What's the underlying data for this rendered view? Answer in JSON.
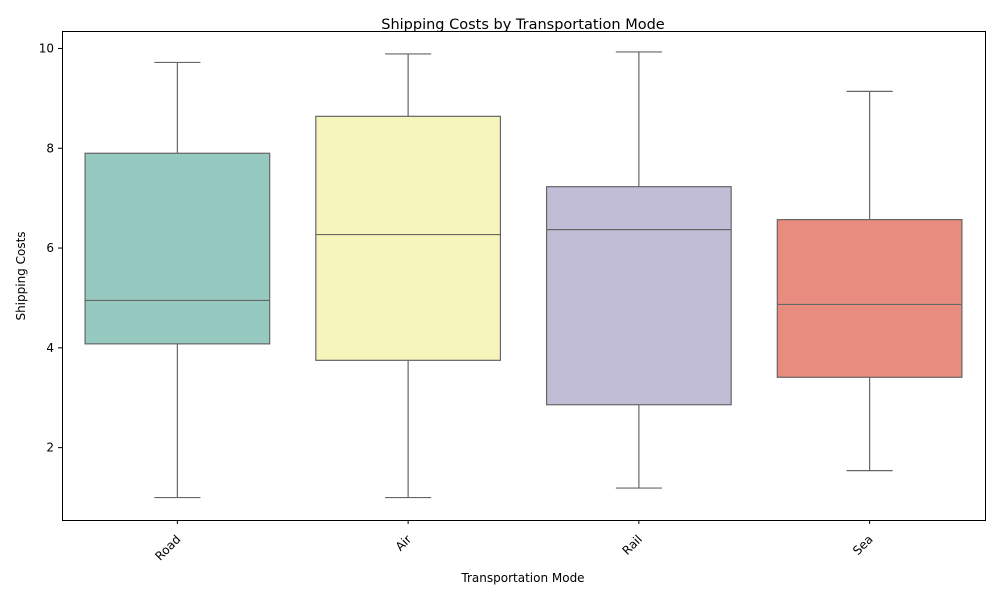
{
  "chart_data": {
    "type": "box",
    "title": "Shipping Costs by Transportation Mode",
    "xlabel": "Transportation Mode",
    "ylabel": "Shipping Costs",
    "ylim": [
      0.55,
      10.35
    ],
    "yticks": [
      2,
      4,
      6,
      8,
      10
    ],
    "grid": false,
    "categories": [
      "Road",
      "Air",
      "Rail",
      "Sea"
    ],
    "boxes": [
      {
        "category": "Road",
        "min": 1.0,
        "q1": 4.08,
        "median": 4.95,
        "q3": 7.9,
        "max": 9.72,
        "color": "#96c9c0"
      },
      {
        "category": "Air",
        "min": 1.0,
        "q1": 3.75,
        "median": 6.27,
        "q3": 8.64,
        "max": 9.89,
        "color": "#f6f6bc"
      },
      {
        "category": "Rail",
        "min": 1.19,
        "q1": 2.86,
        "median": 6.37,
        "q3": 7.23,
        "max": 9.93,
        "color": "#c1bdd6"
      },
      {
        "category": "Sea",
        "min": 1.54,
        "q1": 3.41,
        "median": 4.87,
        "q3": 6.57,
        "max": 9.14,
        "color": "#e98c80"
      }
    ]
  }
}
